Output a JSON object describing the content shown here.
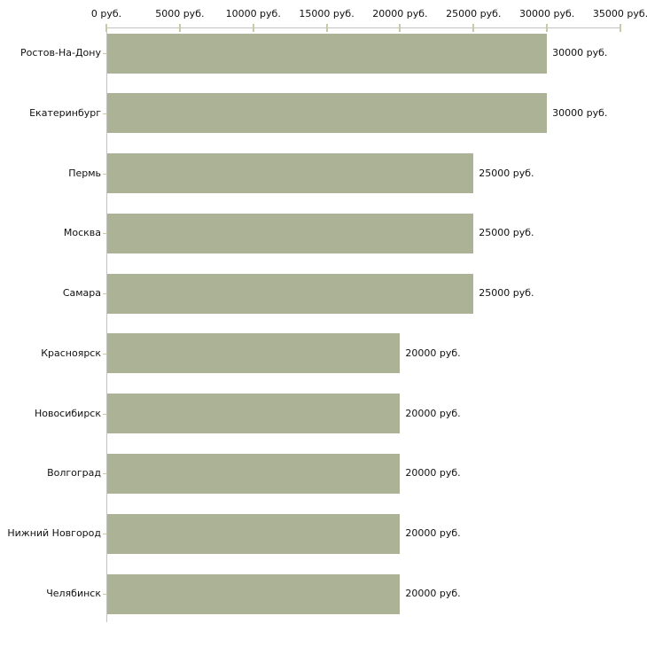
{
  "chart_data": {
    "type": "bar",
    "orientation": "horizontal",
    "title": "",
    "categories": [
      "Ростов-На-Дону",
      "Екатеринбург",
      "Пермь",
      "Москва",
      "Самара",
      "Красноярск",
      "Новосибирск",
      "Волгоград",
      "Нижний Новгород",
      "Челябинск"
    ],
    "values": [
      30000,
      30000,
      25000,
      25000,
      25000,
      20000,
      20000,
      20000,
      20000,
      20000
    ],
    "value_labels": [
      "30000 руб.",
      "30000 руб.",
      "25000 руб.",
      "25000 руб.",
      "25000 руб.",
      "20000 руб.",
      "20000 руб.",
      "20000 руб.",
      "20000 руб.",
      "20000 руб."
    ],
    "unit": "руб.",
    "xlim": [
      0,
      35000
    ],
    "x_ticks": [
      0,
      5000,
      10000,
      15000,
      20000,
      25000,
      30000,
      35000
    ],
    "x_tick_labels": [
      "0 руб.",
      "5000 руб.",
      "10000 руб.",
      "15000 руб.",
      "20000 руб.",
      "25000 руб.",
      "30000 руб.",
      "35000 руб."
    ],
    "axis_position": "top",
    "grid": false,
    "legend": false,
    "colors": {
      "bar": "#acb296",
      "axis_line": "#c3c3c3",
      "tick": "#c9c9a3",
      "text": "#111111",
      "background": "#ffffff"
    }
  }
}
